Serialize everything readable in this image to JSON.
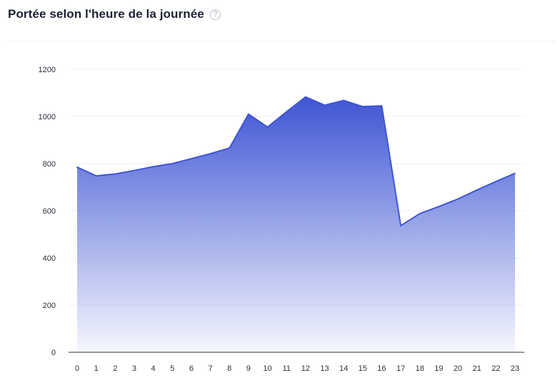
{
  "header": {
    "title": "Portée selon l'heure de la journée",
    "help_icon": "question-circle-icon",
    "help_glyph": "?"
  },
  "colors": {
    "line": "#3f55d4",
    "fill_top": "#3f55d4",
    "fill_bottom": "#ffffff",
    "grid": "#f0f1f4",
    "axis": "#2b2f38"
  },
  "chart_data": {
    "type": "area",
    "title": "Portée selon l'heure de la journée",
    "xlabel": "",
    "ylabel": "",
    "x": [
      "0",
      "1",
      "2",
      "3",
      "4",
      "5",
      "6",
      "7",
      "8",
      "9",
      "10",
      "11",
      "12",
      "13",
      "14",
      "15",
      "16",
      "17",
      "18",
      "19",
      "20",
      "21",
      "22",
      "23"
    ],
    "series": [
      {
        "values": [
          785,
          748,
          756,
          771,
          787,
          800,
          821,
          842,
          866,
          1010,
          955,
          1020,
          1083,
          1048,
          1068,
          1042,
          1045,
          537,
          588,
          618,
          650,
          688,
          724,
          759
        ]
      }
    ],
    "ylim": [
      0,
      1200
    ],
    "yticks": [
      0,
      200,
      400,
      600,
      800,
      1000,
      1200
    ],
    "grid": "horizontal",
    "legend": "none"
  }
}
